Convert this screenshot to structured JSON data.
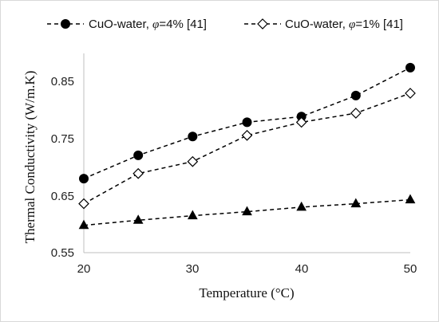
{
  "chart_data": {
    "type": "line",
    "xlabel": "Temperature (°C)",
    "ylabel": "Thermal Conductivity (W/m.K)",
    "xlim": [
      20,
      50
    ],
    "ylim": [
      0.55,
      0.9
    ],
    "x_ticks": [
      "20",
      "30",
      "40",
      "50"
    ],
    "y_ticks": [
      "0.55",
      "0.65",
      "0.75",
      "0.85"
    ],
    "grid": false,
    "legend_position": "top",
    "series": [
      {
        "name": "CuO-water, φ=4% [41]",
        "name_prefix": "CuO-water, ",
        "name_symbol": "φ",
        "name_suffix": "=4% [41]",
        "marker": "filled-circle",
        "color": "#000000",
        "x": [
          20,
          25,
          30,
          35,
          40,
          45,
          50
        ],
        "values": [
          0.68,
          0.721,
          0.754,
          0.779,
          0.789,
          0.826,
          0.875
        ]
      },
      {
        "name": "CuO-water, φ=1% [41]",
        "name_prefix": "CuO-water, ",
        "name_symbol": "φ",
        "name_suffix": "=1% [41]",
        "marker": "open-diamond",
        "color": "#000000",
        "x": [
          20,
          25,
          30,
          35,
          40,
          45,
          50
        ],
        "values": [
          0.636,
          0.689,
          0.71,
          0.756,
          0.779,
          0.795,
          0.83
        ]
      },
      {
        "marker": "filled-triangle",
        "color": "#000000",
        "x": [
          20,
          25,
          30,
          35,
          40,
          45,
          50
        ],
        "values": [
          0.598,
          0.607,
          0.615,
          0.622,
          0.63,
          0.636,
          0.643
        ]
      }
    ]
  }
}
